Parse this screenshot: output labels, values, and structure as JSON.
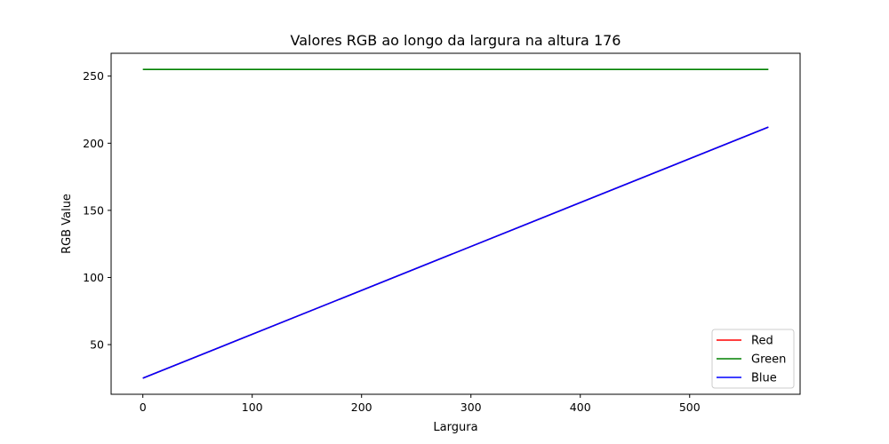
{
  "chart_data": {
    "type": "line",
    "title": "Valores RGB ao longo da largura na altura 176",
    "xlabel": "Largura",
    "ylabel": "RGB Value",
    "xlim": [
      -29,
      601
    ],
    "ylim": [
      13,
      267
    ],
    "xticks": [
      0,
      100,
      200,
      300,
      400,
      500
    ],
    "yticks": [
      50,
      100,
      150,
      200,
      250
    ],
    "grid": false,
    "legend": "bottom-right",
    "series": [
      {
        "name": "Red",
        "color": "#ff0000",
        "x": [
          0,
          572
        ],
        "y": [
          25,
          212
        ]
      },
      {
        "name": "Green",
        "color": "#008000",
        "x": [
          0,
          572
        ],
        "y": [
          255,
          255
        ]
      },
      {
        "name": "Blue",
        "color": "#0000ff",
        "x": [
          0,
          572
        ],
        "y": [
          25,
          212
        ]
      }
    ]
  }
}
